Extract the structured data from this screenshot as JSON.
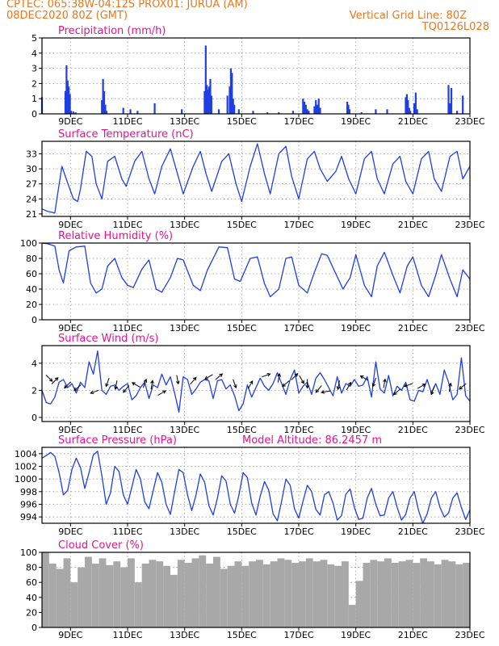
{
  "header": {
    "line1": "CPTEC:   065:38W-04:12S   PROX01: JURUA (AM)",
    "line2": "08DEC2020 80Z (GMT)",
    "grid_note": "Vertical Grid Line: 80Z",
    "code": "TQ0126L028"
  },
  "colors": {
    "header": "#e8781e",
    "panel_title": "#e8128c",
    "series": "#1f3fe0",
    "cloud": "#a8a8a8",
    "wind_arrow": "#000000",
    "grid": "#999999"
  },
  "chart_data": [
    {
      "type": "bar",
      "title": "Precipitation (mm/h)",
      "ylim": [
        0,
        5
      ],
      "yticks": [
        0,
        1,
        2,
        3,
        4,
        5
      ],
      "xlim": [
        8.0,
        23.0
      ],
      "x_ticks": [
        9,
        11,
        13,
        15,
        17,
        19,
        21,
        23
      ],
      "x_tick_labels": [
        "9DEC",
        "11DEC",
        "13DEC",
        "15DEC",
        "17DEC",
        "19DEC",
        "21DEC",
        "23DEC"
      ],
      "grid": true,
      "x": [
        8.0,
        8.82,
        8.86,
        8.9,
        8.94,
        8.98,
        9.02,
        9.1,
        9.18,
        10.1,
        10.14,
        10.18,
        10.22,
        10.26,
        10.85,
        11.1,
        11.35,
        11.95,
        12.9,
        13.7,
        13.74,
        13.78,
        13.82,
        13.86,
        13.9,
        13.94,
        14.2,
        14.5,
        14.58,
        14.62,
        14.66,
        14.7,
        14.74,
        14.9,
        15.4,
        15.9,
        16.3,
        16.8,
        17.15,
        17.2,
        17.25,
        17.3,
        17.35,
        17.55,
        17.6,
        17.65,
        17.7,
        17.75,
        18.7,
        18.74,
        18.78,
        19.2,
        19.7,
        20.1,
        20.75,
        20.79,
        20.83,
        20.87,
        20.91,
        21.05,
        21.1,
        21.15,
        22.25,
        22.3,
        22.35,
        22.55,
        22.75
      ],
      "values": [
        1.1,
        1.5,
        3.2,
        2.2,
        1.8,
        1.3,
        0.2,
        0.15,
        0.1,
        0.9,
        2.3,
        1.5,
        0.6,
        0.2,
        0.4,
        0.3,
        0.2,
        0.7,
        0.3,
        1.5,
        4.5,
        1.9,
        1.6,
        1.8,
        2.3,
        1.2,
        0.3,
        1.2,
        1.8,
        3.0,
        2.7,
        1.0,
        0.6,
        0.3,
        0.2,
        0.1,
        0.1,
        0.2,
        1.0,
        0.8,
        0.6,
        0.3,
        0.2,
        0.5,
        0.9,
        0.6,
        1.0,
        0.4,
        0.8,
        0.6,
        0.3,
        0.1,
        0.3,
        0.3,
        1.1,
        1.3,
        0.9,
        0.4,
        0.2,
        0.7,
        1.4,
        0.3,
        1.9,
        0.7,
        1.7,
        0.2,
        1.2
      ]
    },
    {
      "type": "line",
      "title": "Surface Temperature (nC)",
      "ylim": [
        20.5,
        35.5
      ],
      "yticks": [
        21,
        24,
        27,
        30,
        33
      ],
      "xlim": [
        8.0,
        23.0
      ],
      "x_ticks": [
        9,
        11,
        13,
        15,
        17,
        19,
        21,
        23
      ],
      "x_tick_labels": [
        "9DEC",
        "11DEC",
        "13DEC",
        "15DEC",
        "17DEC",
        "19DEC",
        "21DEC",
        "23DEC"
      ],
      "grid": true,
      "x": [
        8.0,
        8.2,
        8.45,
        8.55,
        8.7,
        8.85,
        9.1,
        9.25,
        9.35,
        9.55,
        9.75,
        9.9,
        10.1,
        10.3,
        10.55,
        10.8,
        10.95,
        11.25,
        11.5,
        11.75,
        11.95,
        12.2,
        12.5,
        12.75,
        12.95,
        13.3,
        13.55,
        13.75,
        13.95,
        14.3,
        14.55,
        14.8,
        15.0,
        15.3,
        15.55,
        15.8,
        16.0,
        16.3,
        16.55,
        16.75,
        17.0,
        17.3,
        17.55,
        17.75,
        18.0,
        18.3,
        18.5,
        18.75,
        19.0,
        19.3,
        19.55,
        19.75,
        20.0,
        20.3,
        20.55,
        20.75,
        21.0,
        21.3,
        21.55,
        21.75,
        22.0,
        22.3,
        22.55,
        22.75,
        23.0
      ],
      "values": [
        22.0,
        21.5,
        21.2,
        25.0,
        30.5,
        28.0,
        24.0,
        23.5,
        26.0,
        33.5,
        32.5,
        27.0,
        24.0,
        31.5,
        32.5,
        28.0,
        26.5,
        31.5,
        33.5,
        28.0,
        25.0,
        30.5,
        34.0,
        29.0,
        25.0,
        30.5,
        33.5,
        29.0,
        25.5,
        31.5,
        33.0,
        27.0,
        23.5,
        30.5,
        35.0,
        29.0,
        25.0,
        33.0,
        34.5,
        28.5,
        24.0,
        32.0,
        33.5,
        30.0,
        27.5,
        29.5,
        32.5,
        28.0,
        25.0,
        32.0,
        33.5,
        28.0,
        25.0,
        31.0,
        32.5,
        27.5,
        25.0,
        32.0,
        33.5,
        28.0,
        25.5,
        32.5,
        33.5,
        28.0,
        30.5
      ]
    },
    {
      "type": "line",
      "title": "Relative Humidity (%)",
      "ylim": [
        0,
        100
      ],
      "yticks": [
        0,
        20,
        40,
        60,
        80,
        100
      ],
      "xlim": [
        8.0,
        23.0
      ],
      "x_ticks": [
        9,
        11,
        13,
        15,
        17,
        19,
        21,
        23
      ],
      "x_tick_labels": [
        "9DEC",
        "11DEC",
        "13DEC",
        "15DEC",
        "17DEC",
        "19DEC",
        "21DEC",
        "23DEC"
      ],
      "grid": true,
      "x": [
        8.0,
        8.2,
        8.45,
        8.6,
        8.75,
        8.95,
        9.2,
        9.5,
        9.7,
        9.9,
        10.1,
        10.3,
        10.55,
        10.8,
        11.0,
        11.2,
        11.5,
        11.75,
        12.0,
        12.2,
        12.5,
        12.75,
        12.95,
        13.3,
        13.55,
        13.8,
        14.2,
        14.5,
        14.75,
        14.95,
        15.3,
        15.55,
        15.8,
        16.0,
        16.3,
        16.55,
        16.75,
        17.0,
        17.3,
        17.55,
        17.8,
        18.0,
        18.3,
        18.55,
        18.8,
        19.0,
        19.3,
        19.55,
        19.75,
        20.0,
        20.3,
        20.55,
        20.8,
        21.0,
        21.3,
        21.55,
        21.8,
        22.0,
        22.3,
        22.55,
        22.75,
        23.0
      ],
      "values": [
        100,
        99,
        96,
        65,
        48,
        90,
        95,
        96,
        48,
        35,
        40,
        70,
        80,
        55,
        45,
        42,
        66,
        78,
        40,
        36,
        55,
        80,
        78,
        45,
        38,
        65,
        95,
        94,
        53,
        50,
        80,
        82,
        47,
        30,
        40,
        80,
        82,
        45,
        35,
        62,
        86,
        84,
        60,
        40,
        55,
        85,
        45,
        30,
        70,
        88,
        58,
        35,
        70,
        82,
        45,
        30,
        58,
        85,
        53,
        30,
        65,
        53
      ]
    },
    {
      "type": "line",
      "title": "Surface Wind (m/s)",
      "ylim": [
        -0.3,
        5.3
      ],
      "yticks": [
        0,
        2,
        4
      ],
      "xlim": [
        8.0,
        23.0
      ],
      "x_ticks": [
        9,
        11,
        13,
        15,
        17,
        19,
        21,
        23
      ],
      "x_tick_labels": [
        "9DEC",
        "11DEC",
        "13DEC",
        "15DEC",
        "17DEC",
        "19DEC",
        "21DEC",
        "23DEC"
      ],
      "grid": true,
      "x": [
        8.0,
        8.15,
        8.3,
        8.45,
        8.6,
        8.75,
        8.9,
        9.05,
        9.2,
        9.35,
        9.5,
        9.65,
        9.8,
        9.95,
        10.1,
        10.25,
        10.4,
        10.55,
        10.7,
        10.85,
        11.0,
        11.15,
        11.3,
        11.45,
        11.6,
        11.75,
        11.9,
        12.05,
        12.2,
        12.35,
        12.5,
        12.65,
        12.8,
        12.95,
        13.1,
        13.25,
        13.4,
        13.55,
        13.7,
        13.85,
        14.0,
        14.15,
        14.3,
        14.45,
        14.6,
        14.75,
        14.9,
        15.05,
        15.2,
        15.35,
        15.5,
        15.65,
        15.8,
        15.95,
        16.1,
        16.25,
        16.4,
        16.55,
        16.7,
        16.85,
        17.0,
        17.15,
        17.3,
        17.45,
        17.6,
        17.75,
        17.9,
        18.05,
        18.2,
        18.35,
        18.5,
        18.65,
        18.8,
        18.95,
        19.1,
        19.25,
        19.4,
        19.55,
        19.7,
        19.85,
        20.0,
        20.15,
        20.3,
        20.45,
        20.6,
        20.75,
        20.9,
        21.05,
        21.2,
        21.35,
        21.5,
        21.65,
        21.8,
        21.95,
        22.1,
        22.25,
        22.4,
        22.55,
        22.7,
        22.85,
        23.0
      ],
      "values": [
        2.0,
        1.1,
        1.0,
        1.5,
        2.6,
        2.8,
        2.2,
        2.5,
        1.8,
        2.6,
        2.2,
        4.1,
        3.2,
        4.9,
        2.0,
        1.7,
        2.3,
        2.4,
        2.0,
        2.3,
        2.5,
        1.3,
        1.6,
        2.2,
        2.6,
        1.4,
        2.4,
        2.2,
        3.2,
        2.4,
        3.0,
        1.8,
        0.4,
        3.0,
        2.8,
        1.7,
        2.1,
        2.6,
        2.8,
        2.7,
        1.4,
        2.7,
        2.8,
        2.1,
        2.4,
        1.6,
        0.5,
        1.0,
        2.4,
        1.5,
        2.2,
        2.9,
        2.3,
        2.0,
        2.5,
        3.3,
        2.5,
        1.7,
        2.8,
        3.5,
        1.8,
        2.3,
        2.6,
        1.7,
        2.9,
        3.3,
        2.8,
        2.2,
        1.6,
        3.0,
        1.8,
        2.5,
        2.3,
        2.8,
        2.3,
        2.4,
        3.0,
        1.5,
        4.1,
        2.1,
        1.8,
        3.1,
        1.6,
        2.3,
        2.0,
        2.6,
        1.3,
        1.2,
        2.0,
        1.9,
        2.8,
        1.8,
        2.5,
        1.7,
        3.5,
        2.6,
        1.3,
        1.7,
        4.4,
        1.6,
        1.2
      ],
      "arrows": {
        "x": [
          8.25,
          8.45,
          8.9,
          9.25,
          9.85,
          10.3,
          10.6,
          10.95,
          11.3,
          11.6,
          11.85,
          12.2,
          12.75,
          13.3,
          13.85,
          14.2,
          14.75,
          15.3,
          15.85,
          16.3,
          16.55,
          16.85,
          17.1,
          17.3,
          17.7,
          17.95,
          18.4,
          18.75,
          19.3,
          19.65,
          20.0,
          20.45,
          20.85,
          21.3,
          21.7,
          22.3,
          22.75
        ],
        "y": [
          2.9,
          2.7,
          2.4,
          2.2,
          1.9,
          2.6,
          2.4,
          2.1,
          2.4,
          2.5,
          2.4,
          1.8,
          2.8,
          2.7,
          3.0,
          3.0,
          2.5,
          2.4,
          3.1,
          2.9,
          2.5,
          3.0,
          2.8,
          2.5,
          2.1,
          1.9,
          2.4,
          2.3,
          2.9,
          2.6,
          2.5,
          1.9,
          2.4,
          2.3,
          2.0,
          2.2,
          2.3
        ],
        "dir_deg": [
          135,
          45,
          225,
          230,
          250,
          200,
          190,
          220,
          300,
          20,
          10,
          60,
          170,
          40,
          240,
          50,
          160,
          30,
          70,
          10,
          230,
          45,
          150,
          180,
          220,
          260,
          190,
          30,
          300,
          200,
          10,
          230,
          250,
          60,
          200,
          10,
          230
        ]
      }
    },
    {
      "type": "line",
      "title": "Surface Pressure (hPa)",
      "annotation": "Model Altitude: 86.2457 m",
      "ylim": [
        993.0,
        1005.0
      ],
      "yticks": [
        994,
        996,
        998,
        1000,
        1002,
        1004
      ],
      "xlim": [
        8.0,
        23.0
      ],
      "x_ticks": [
        9,
        11,
        13,
        15,
        17,
        19,
        21,
        23
      ],
      "x_tick_labels": [
        "9DEC",
        "11DEC",
        "13DEC",
        "15DEC",
        "17DEC",
        "19DEC",
        "21DEC",
        "23DEC"
      ],
      "grid": true,
      "x": [
        8.0,
        8.15,
        8.3,
        8.45,
        8.6,
        8.75,
        8.9,
        9.05,
        9.2,
        9.35,
        9.5,
        9.65,
        9.8,
        9.95,
        10.1,
        10.25,
        10.4,
        10.55,
        10.7,
        10.85,
        11.0,
        11.15,
        11.3,
        11.45,
        11.6,
        11.75,
        11.9,
        12.05,
        12.2,
        12.35,
        12.5,
        12.65,
        12.8,
        12.95,
        13.1,
        13.25,
        13.4,
        13.55,
        13.7,
        13.85,
        14.0,
        14.15,
        14.3,
        14.45,
        14.6,
        14.75,
        14.9,
        15.05,
        15.2,
        15.35,
        15.5,
        15.65,
        15.8,
        15.95,
        16.1,
        16.25,
        16.4,
        16.55,
        16.7,
        16.85,
        17.0,
        17.15,
        17.3,
        17.45,
        17.6,
        17.75,
        17.9,
        18.05,
        18.2,
        18.35,
        18.5,
        18.65,
        18.8,
        18.95,
        19.1,
        19.25,
        19.4,
        19.55,
        19.7,
        19.85,
        20.0,
        20.15,
        20.3,
        20.45,
        20.6,
        20.75,
        20.9,
        21.05,
        21.2,
        21.35,
        21.5,
        21.65,
        21.8,
        21.95,
        22.1,
        22.25,
        22.4,
        22.55,
        22.7,
        22.85,
        23.0
      ],
      "values": [
        1003.3,
        1003.7,
        1004.2,
        1003.6,
        1001.0,
        997.5,
        998.2,
        1001.5,
        1003.3,
        1001.8,
        998.5,
        1001.0,
        1003.8,
        1004.4,
        1000.5,
        996.0,
        997.8,
        1002.0,
        1001.2,
        997.5,
        996.0,
        998.7,
        1001.5,
        1000.0,
        996.4,
        995.3,
        998.2,
        1001.0,
        999.5,
        996.0,
        994.4,
        998.0,
        1001.5,
        1001.0,
        997.5,
        995.0,
        997.5,
        1000.8,
        999.5,
        995.8,
        994.3,
        997.0,
        1000.5,
        999.7,
        996.0,
        994.6,
        997.4,
        1001.0,
        1000.2,
        996.2,
        994.3,
        997.3,
        999.6,
        998.2,
        994.5,
        993.4,
        996.5,
        1000.0,
        999.0,
        995.3,
        993.8,
        996.5,
        999.0,
        998.0,
        995.2,
        994.3,
        997.5,
        998.0,
        996.2,
        993.5,
        994.2,
        997.6,
        998.4,
        995.5,
        993.6,
        993.8,
        997.0,
        998.5,
        996.0,
        994.2,
        994.3,
        997.0,
        998.0,
        995.5,
        993.5,
        994.4,
        997.0,
        998.0,
        995.0,
        993.0,
        994.5,
        997.0,
        998.0,
        995.5,
        994.0,
        994.6,
        997.0,
        997.8,
        995.5,
        993.6,
        995.1
      ]
    },
    {
      "type": "bar",
      "title": "Cloud Cover (%)",
      "ylim": [
        0,
        100
      ],
      "yticks": [
        0,
        20,
        40,
        60,
        80,
        100
      ],
      "xlim": [
        8.0,
        23.0
      ],
      "x_ticks": [
        9,
        11,
        13,
        15,
        17,
        19,
        21,
        23
      ],
      "x_tick_labels": [
        "9DEC",
        "11DEC",
        "13DEC",
        "15DEC",
        "17DEC",
        "19DEC",
        "21DEC",
        "23DEC"
      ],
      "grid": true,
      "x": [
        8.0,
        8.25,
        8.5,
        8.75,
        9.0,
        9.25,
        9.5,
        9.75,
        10.0,
        10.25,
        10.5,
        10.75,
        11.0,
        11.25,
        11.5,
        11.75,
        12.0,
        12.25,
        12.5,
        12.75,
        13.0,
        13.25,
        13.5,
        13.75,
        14.0,
        14.25,
        14.5,
        14.75,
        15.0,
        15.25,
        15.5,
        15.75,
        16.0,
        16.25,
        16.5,
        16.75,
        17.0,
        17.25,
        17.5,
        17.75,
        18.0,
        18.25,
        18.5,
        18.75,
        19.0,
        19.25,
        19.5,
        19.75,
        20.0,
        20.25,
        20.5,
        20.75,
        21.0,
        21.25,
        21.5,
        21.75,
        22.0,
        22.25,
        22.5,
        22.75
      ],
      "values": [
        100,
        85,
        78,
        92,
        60,
        80,
        94,
        85,
        92,
        83,
        88,
        80,
        92,
        60,
        85,
        90,
        88,
        82,
        70,
        90,
        86,
        92,
        96,
        85,
        94,
        78,
        82,
        88,
        82,
        88,
        90,
        84,
        88,
        92,
        90,
        86,
        88,
        92,
        88,
        90,
        84,
        82,
        88,
        30,
        62,
        86,
        90,
        88,
        92,
        86,
        88,
        90,
        86,
        92,
        88,
        84,
        90,
        88,
        84,
        86
      ]
    }
  ]
}
